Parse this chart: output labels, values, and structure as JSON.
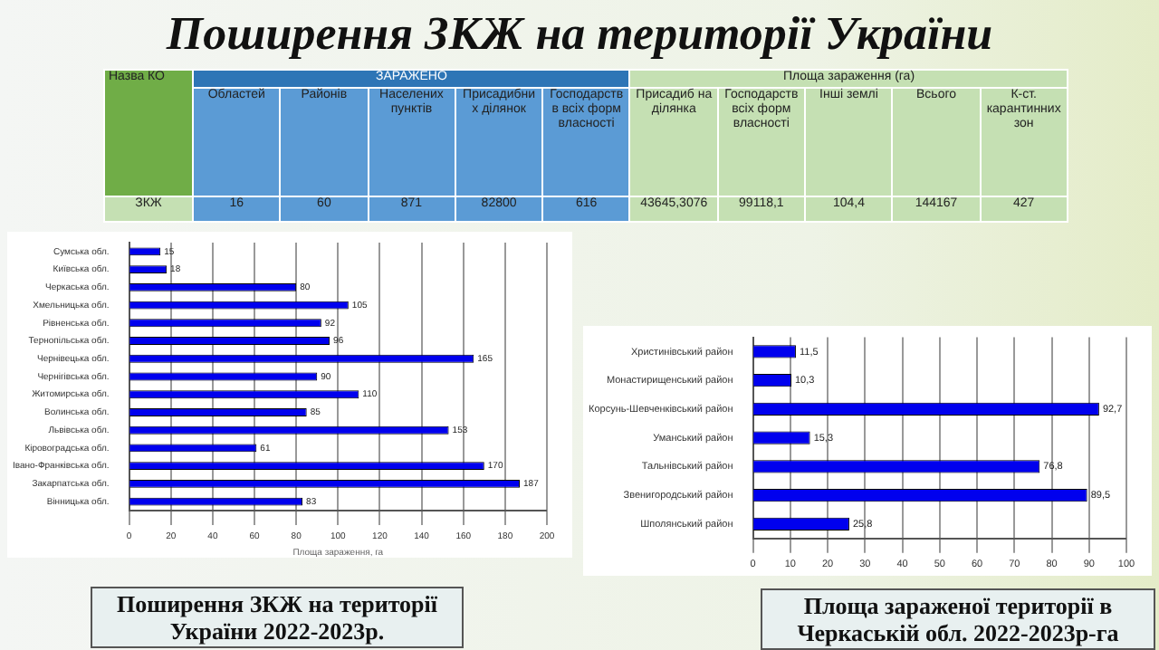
{
  "chart_data": [
    {
      "type": "other",
      "title": "Поширення ЗКЖ на території України",
      "categories": [
        "Областей",
        "Районів",
        "Населених пунктів",
        "Присадибних ділянок",
        "Господарств в всіх форм власності",
        "Присадиб на ділянка",
        "Господарств всіх форм власності",
        "Інші землі",
        "Всього",
        "К-ст. карантинних зон"
      ],
      "annotations": [
        "Назва КО",
        "ЗАРАЖЕНО",
        "Площа зараження (га)",
        "ЗКЖ",
        "16",
        "60",
        "871",
        "82800",
        "616",
        "43645,3076",
        "99118,1",
        "104,4",
        "144167",
        "427"
      ]
    },
    {
      "type": "bar",
      "orientation": "horizontal",
      "title": "Поширення ЗКЖ на території України 2022-2023р.",
      "xlabel": "Площа зараження, га",
      "categories": [
        "Сумська обл.",
        "Київська обл.",
        "Черкаська обл.",
        "Хмельницька обл.",
        "Рівненська обл.",
        "Тернопільська обл.",
        "Чернівецька обл.",
        "Чернігівська обл.",
        "Житомирська обл.",
        "Волинська обл.",
        "Львівська обл.",
        "Кіровоградська обл.",
        "Івано-Франківська обл.",
        "Закарпатська обл.",
        "Вінницька обл."
      ],
      "values": [
        15,
        18,
        80,
        105,
        92,
        96,
        165,
        90,
        110,
        85,
        153,
        61,
        170,
        187,
        83
      ],
      "color": "#0000ee",
      "xlim": [
        0,
        200
      ],
      "xticks": [
        0,
        20,
        40,
        60,
        80,
        100,
        120,
        140,
        160,
        180,
        200
      ],
      "grid": "x",
      "data_labels": true
    },
    {
      "type": "bar",
      "orientation": "horizontal",
      "title": "Площа зараженої території в Черкаській обл. 2022-2023р-га",
      "categories": [
        "Христинівський район",
        "Монастирищенський район",
        "Корсунь-Шевченківський район",
        "Уманський район",
        "Тальнівський район",
        "Звенигородський район",
        "Шполянський район"
      ],
      "values": [
        11.5,
        10.3,
        92.7,
        15.3,
        76.8,
        89.5,
        25.8
      ],
      "value_labels": [
        "11,5",
        "10,3",
        "92,7",
        "15,3",
        "76,8",
        "89,5",
        "25,8"
      ],
      "color": "#0000ee",
      "xlim": [
        0,
        100
      ],
      "xticks": [
        0,
        10,
        20,
        30,
        40,
        50,
        60,
        70,
        80,
        90,
        100
      ],
      "grid": "x"
    }
  ]
}
